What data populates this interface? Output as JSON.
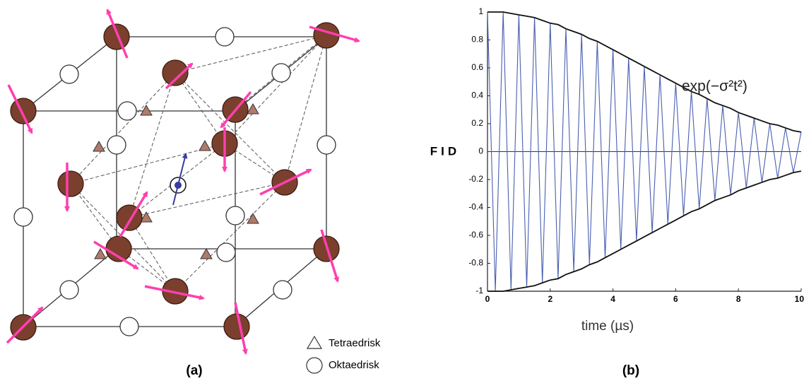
{
  "diagram": {
    "legend": [
      {
        "label": "Tetraedrisk"
      },
      {
        "label": "Oktaedrisk"
      }
    ],
    "caption": "(a)"
  },
  "chart_data": {
    "type": "line",
    "caption": "(b)",
    "ylabel": "FID",
    "xlabel": "time (µs)",
    "annotation": "exp(−σ²t²)",
    "x": [
      0,
      0.25,
      0.5,
      0.75,
      1,
      1.25,
      1.5,
      1.75,
      2,
      2.25,
      2.5,
      2.75,
      3,
      3.25,
      3.5,
      3.75,
      4,
      4.25,
      4.5,
      4.75,
      5,
      5.25,
      5.5,
      5.75,
      6,
      6.25,
      6.5,
      6.75,
      7,
      7.25,
      7.5,
      7.75,
      8,
      8.25,
      8.5,
      8.75,
      9,
      9.25,
      9.5,
      9.75,
      10
    ],
    "series": [
      {
        "color": "#4a5fb0",
        "values": [
          1,
          -1,
          1,
          -0.99,
          0.98,
          -0.97,
          0.96,
          -0.94,
          0.92,
          -0.91,
          0.88,
          -0.86,
          0.84,
          -0.81,
          0.79,
          -0.76,
          0.73,
          -0.7,
          0.67,
          -0.64,
          0.61,
          -0.58,
          0.55,
          -0.52,
          0.49,
          -0.46,
          0.43,
          -0.41,
          0.38,
          -0.35,
          0.33,
          -0.31,
          0.28,
          -0.26,
          0.24,
          -0.22,
          0.2,
          -0.19,
          0.17,
          -0.15,
          0.14
        ]
      },
      {
        "color": "#111111",
        "values": [
          1,
          1,
          1,
          0.99,
          0.98,
          0.97,
          0.96,
          0.94,
          0.92,
          0.91,
          0.88,
          0.86,
          0.84,
          0.81,
          0.79,
          0.76,
          0.73,
          0.7,
          0.67,
          0.64,
          0.61,
          0.58,
          0.55,
          0.52,
          0.49,
          0.46,
          0.43,
          0.41,
          0.38,
          0.35,
          0.33,
          0.31,
          0.28,
          0.26,
          0.24,
          0.22,
          0.2,
          0.19,
          0.17,
          0.15,
          0.14
        ]
      },
      {
        "color": "#111111",
        "values": [
          -1,
          -1,
          -1,
          -0.99,
          -0.98,
          -0.97,
          -0.96,
          -0.94,
          -0.92,
          -0.91,
          -0.88,
          -0.86,
          -0.84,
          -0.81,
          -0.79,
          -0.76,
          -0.73,
          -0.7,
          -0.67,
          -0.64,
          -0.61,
          -0.58,
          -0.55,
          -0.52,
          -0.49,
          -0.46,
          -0.43,
          -0.41,
          -0.38,
          -0.35,
          -0.33,
          -0.31,
          -0.28,
          -0.26,
          -0.24,
          -0.22,
          -0.2,
          -0.19,
          -0.17,
          -0.15,
          -0.14
        ]
      }
    ],
    "xlim": [
      0,
      10
    ],
    "ylim": [
      -1,
      1
    ],
    "xticks": [
      0,
      2,
      4,
      6,
      8,
      10
    ],
    "yticks": [
      -1,
      -0.8,
      -0.6,
      -0.4,
      -0.2,
      0,
      0.2,
      0.4,
      0.6,
      0.8,
      1
    ]
  }
}
